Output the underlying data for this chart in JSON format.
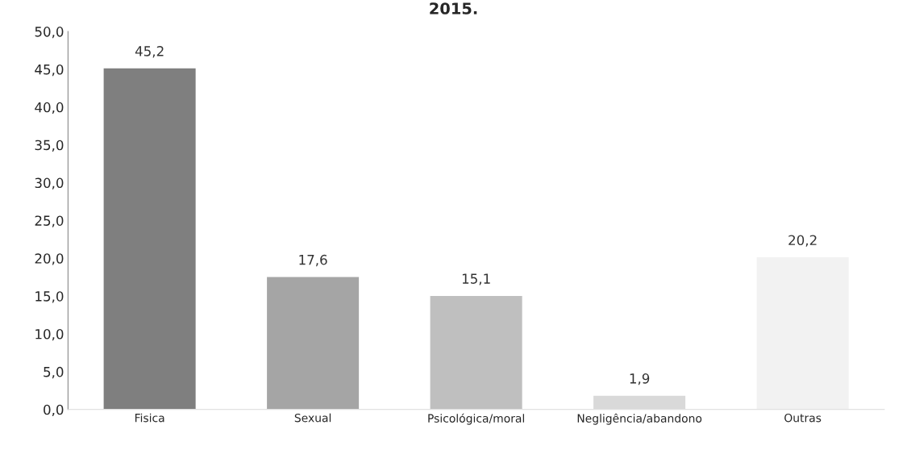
{
  "chart_data": {
    "type": "bar",
    "title": "2015.",
    "categories": [
      "Fisica",
      "Sexual",
      "Psicológica/moral",
      "Negligência/abandono",
      "Outras"
    ],
    "values": [
      45.2,
      17.6,
      15.1,
      1.9,
      20.2
    ],
    "colors": [
      "#7f7f7f",
      "#a5a5a5",
      "#bfbfbf",
      "#d9d9d9",
      "#f2f2f2"
    ],
    "ylim": [
      0,
      50
    ],
    "yticks": [
      {
        "value": 0,
        "label": "0,0"
      },
      {
        "value": 5,
        "label": "5,0"
      },
      {
        "value": 10,
        "label": "10,0"
      },
      {
        "value": 15,
        "label": "15,0"
      },
      {
        "value": 20,
        "label": "20,0"
      },
      {
        "value": 25,
        "label": "25,0"
      },
      {
        "value": 30,
        "label": "30,0"
      },
      {
        "value": 35,
        "label": "35,0"
      },
      {
        "value": 40,
        "label": "40,0"
      },
      {
        "value": 45,
        "label": "45,0"
      },
      {
        "value": 50,
        "label": "50,0"
      }
    ],
    "value_labels": [
      "45,2",
      "17,6",
      "15,1",
      "1,9",
      "20,2"
    ],
    "grid": false,
    "legend": false
  }
}
